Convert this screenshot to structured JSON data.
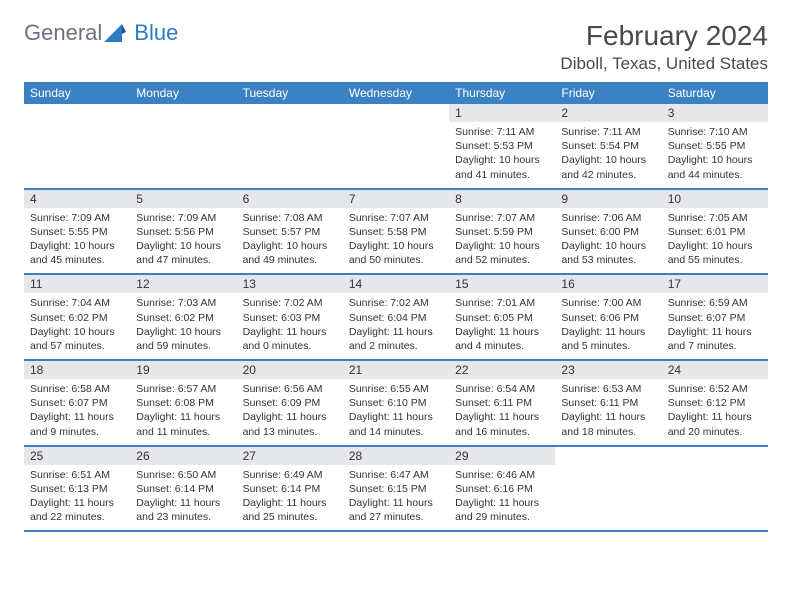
{
  "logo": {
    "textGray": "General",
    "textBlue": "Blue"
  },
  "title": "February 2024",
  "location": "Diboll, Texas, United States",
  "colors": {
    "header_bg": "#3b82c4",
    "day_bar_bg": "#e5e7eb",
    "text": "#333333",
    "logo_gray": "#6b7280",
    "logo_blue": "#2c7bc4"
  },
  "day_names": [
    "Sunday",
    "Monday",
    "Tuesday",
    "Wednesday",
    "Thursday",
    "Friday",
    "Saturday"
  ],
  "weeks": [
    [
      null,
      null,
      null,
      null,
      {
        "n": "1",
        "sr": "7:11 AM",
        "ss": "5:53 PM",
        "dl": "10 hours and 41 minutes."
      },
      {
        "n": "2",
        "sr": "7:11 AM",
        "ss": "5:54 PM",
        "dl": "10 hours and 42 minutes."
      },
      {
        "n": "3",
        "sr": "7:10 AM",
        "ss": "5:55 PM",
        "dl": "10 hours and 44 minutes."
      }
    ],
    [
      {
        "n": "4",
        "sr": "7:09 AM",
        "ss": "5:55 PM",
        "dl": "10 hours and 45 minutes."
      },
      {
        "n": "5",
        "sr": "7:09 AM",
        "ss": "5:56 PM",
        "dl": "10 hours and 47 minutes."
      },
      {
        "n": "6",
        "sr": "7:08 AM",
        "ss": "5:57 PM",
        "dl": "10 hours and 49 minutes."
      },
      {
        "n": "7",
        "sr": "7:07 AM",
        "ss": "5:58 PM",
        "dl": "10 hours and 50 minutes."
      },
      {
        "n": "8",
        "sr": "7:07 AM",
        "ss": "5:59 PM",
        "dl": "10 hours and 52 minutes."
      },
      {
        "n": "9",
        "sr": "7:06 AM",
        "ss": "6:00 PM",
        "dl": "10 hours and 53 minutes."
      },
      {
        "n": "10",
        "sr": "7:05 AM",
        "ss": "6:01 PM",
        "dl": "10 hours and 55 minutes."
      }
    ],
    [
      {
        "n": "11",
        "sr": "7:04 AM",
        "ss": "6:02 PM",
        "dl": "10 hours and 57 minutes."
      },
      {
        "n": "12",
        "sr": "7:03 AM",
        "ss": "6:02 PM",
        "dl": "10 hours and 59 minutes."
      },
      {
        "n": "13",
        "sr": "7:02 AM",
        "ss": "6:03 PM",
        "dl": "11 hours and 0 minutes."
      },
      {
        "n": "14",
        "sr": "7:02 AM",
        "ss": "6:04 PM",
        "dl": "11 hours and 2 minutes."
      },
      {
        "n": "15",
        "sr": "7:01 AM",
        "ss": "6:05 PM",
        "dl": "11 hours and 4 minutes."
      },
      {
        "n": "16",
        "sr": "7:00 AM",
        "ss": "6:06 PM",
        "dl": "11 hours and 5 minutes."
      },
      {
        "n": "17",
        "sr": "6:59 AM",
        "ss": "6:07 PM",
        "dl": "11 hours and 7 minutes."
      }
    ],
    [
      {
        "n": "18",
        "sr": "6:58 AM",
        "ss": "6:07 PM",
        "dl": "11 hours and 9 minutes."
      },
      {
        "n": "19",
        "sr": "6:57 AM",
        "ss": "6:08 PM",
        "dl": "11 hours and 11 minutes."
      },
      {
        "n": "20",
        "sr": "6:56 AM",
        "ss": "6:09 PM",
        "dl": "11 hours and 13 minutes."
      },
      {
        "n": "21",
        "sr": "6:55 AM",
        "ss": "6:10 PM",
        "dl": "11 hours and 14 minutes."
      },
      {
        "n": "22",
        "sr": "6:54 AM",
        "ss": "6:11 PM",
        "dl": "11 hours and 16 minutes."
      },
      {
        "n": "23",
        "sr": "6:53 AM",
        "ss": "6:11 PM",
        "dl": "11 hours and 18 minutes."
      },
      {
        "n": "24",
        "sr": "6:52 AM",
        "ss": "6:12 PM",
        "dl": "11 hours and 20 minutes."
      }
    ],
    [
      {
        "n": "25",
        "sr": "6:51 AM",
        "ss": "6:13 PM",
        "dl": "11 hours and 22 minutes."
      },
      {
        "n": "26",
        "sr": "6:50 AM",
        "ss": "6:14 PM",
        "dl": "11 hours and 23 minutes."
      },
      {
        "n": "27",
        "sr": "6:49 AM",
        "ss": "6:14 PM",
        "dl": "11 hours and 25 minutes."
      },
      {
        "n": "28",
        "sr": "6:47 AM",
        "ss": "6:15 PM",
        "dl": "11 hours and 27 minutes."
      },
      {
        "n": "29",
        "sr": "6:46 AM",
        "ss": "6:16 PM",
        "dl": "11 hours and 29 minutes."
      },
      null,
      null
    ]
  ],
  "labels": {
    "sunrise": "Sunrise:",
    "sunset": "Sunset:",
    "daylight": "Daylight:"
  }
}
